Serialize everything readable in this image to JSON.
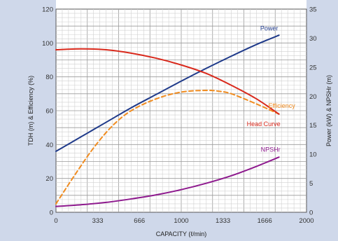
{
  "chart_data": {
    "type": "line",
    "title": "",
    "xlabel": "CAPACITY (ℓ/min)",
    "ylabel_left": "TDH (m) & Efficiency (%)",
    "ylabel_right": "Power (kW) & NPSHr (m)",
    "xlim": [
      0,
      2000
    ],
    "ylim_left": [
      0,
      120
    ],
    "ylim_right": [
      0,
      35
    ],
    "x_ticks": [
      "0",
      "333",
      "666",
      "1000",
      "1333",
      "1666",
      "2000"
    ],
    "y_ticks_left": [
      "0",
      "20",
      "40",
      "60",
      "80",
      "100",
      "120"
    ],
    "y_ticks_right": [
      "0",
      "5",
      "10",
      "15",
      "20",
      "25",
      "30",
      "35"
    ],
    "grid": true,
    "series": [
      {
        "name": "Power",
        "axis": "right",
        "color": "#1f3a8a",
        "dash": false,
        "x": [
          0,
          200,
          400,
          600,
          800,
          1000,
          1200,
          1400,
          1600,
          1780
        ],
        "y": [
          10.5,
          13.0,
          15.5,
          18.0,
          20.3,
          22.6,
          24.8,
          26.9,
          28.9,
          30.5
        ]
      },
      {
        "name": "Efficiency",
        "axis": "left",
        "color": "#f08c20",
        "dash": true,
        "x": [
          0,
          150,
          300,
          450,
          600,
          800,
          1000,
          1200,
          1300,
          1400,
          1600,
          1780
        ],
        "y": [
          5,
          22,
          38,
          51,
          60,
          67,
          71,
          72,
          71.5,
          70,
          64,
          58
        ]
      },
      {
        "name": "Head Curve",
        "axis": "left",
        "color": "#d9291c",
        "dash": false,
        "x": [
          0,
          200,
          400,
          600,
          800,
          1000,
          1200,
          1400,
          1600,
          1780
        ],
        "y": [
          96,
          96.5,
          96,
          94,
          91,
          87,
          82,
          75,
          67,
          58
        ]
      },
      {
        "name": "NPSHr",
        "axis": "right",
        "color": "#8e1a8e",
        "dash": false,
        "x": [
          0,
          200,
          400,
          600,
          800,
          1000,
          1200,
          1400,
          1600,
          1780
        ],
        "y": [
          1.0,
          1.3,
          1.7,
          2.3,
          3.0,
          3.9,
          5.0,
          6.3,
          7.9,
          9.5
        ]
      }
    ]
  }
}
